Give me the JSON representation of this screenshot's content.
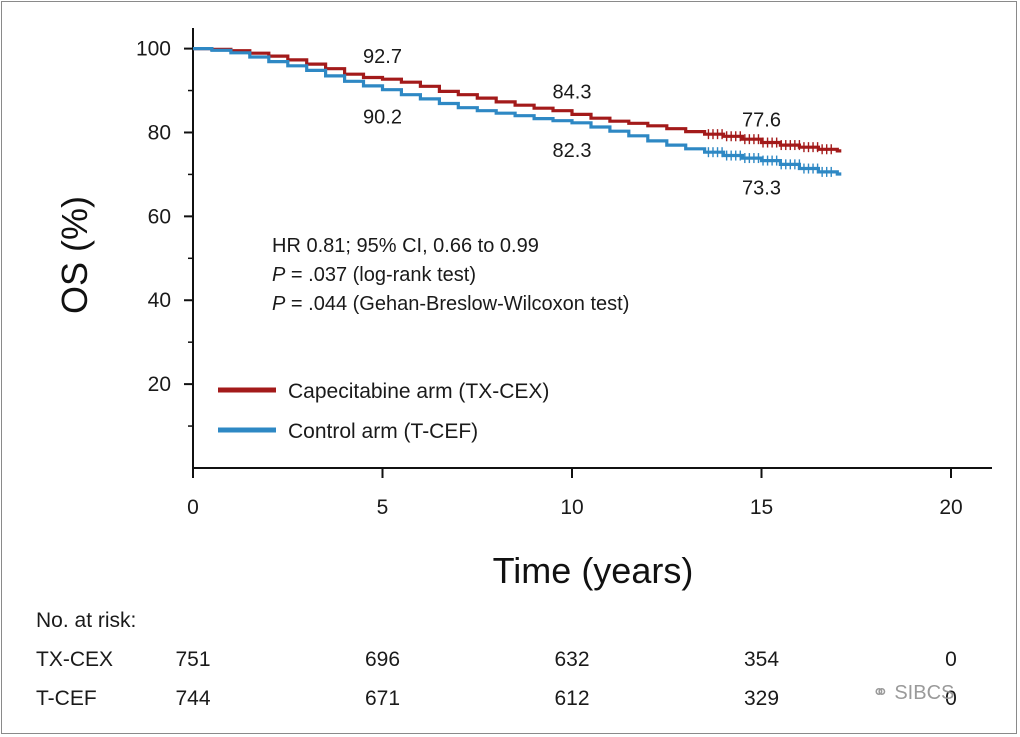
{
  "chart_data": {
    "type": "line",
    "title": "",
    "xlabel": "Time (years)",
    "ylabel": "OS (%)",
    "xlim": [
      0,
      21
    ],
    "ylim": [
      0,
      105
    ],
    "xticks": [
      0,
      5,
      10,
      15,
      20
    ],
    "yticks": [
      20,
      40,
      60,
      80,
      100
    ],
    "yminor": [
      10,
      30,
      50,
      70,
      90
    ],
    "series": [
      {
        "name": "Capecitabine arm (TX-CEX)",
        "color": "#a31a1a",
        "x": [
          0,
          0.5,
          1,
          1.5,
          2,
          2.5,
          3,
          3.5,
          4,
          4.5,
          5,
          5.5,
          6,
          6.5,
          7,
          7.5,
          8,
          8.5,
          9,
          9.5,
          10,
          10.5,
          11,
          11.5,
          12,
          12.5,
          13,
          13.5,
          14,
          14.5,
          15,
          15.5,
          16,
          16.5,
          17
        ],
        "values": [
          100,
          99.8,
          99.5,
          98.9,
          98.2,
          97.3,
          96.3,
          95.2,
          93.9,
          93.1,
          92.7,
          92.0,
          91.0,
          89.8,
          89.0,
          88.2,
          87.3,
          86.5,
          85.8,
          85.2,
          84.3,
          83.4,
          82.7,
          82.2,
          81.6,
          80.9,
          80.2,
          79.6,
          79.1,
          78.4,
          77.6,
          77.0,
          76.5,
          76.0,
          75.6
        ]
      },
      {
        "name": "Control arm (T-CEF)",
        "color": "#2e88c4",
        "x": [
          0,
          0.5,
          1,
          1.5,
          2,
          2.5,
          3,
          3.5,
          4,
          4.5,
          5,
          5.5,
          6,
          6.5,
          7,
          7.5,
          8,
          8.5,
          9,
          9.5,
          10,
          10.5,
          11,
          11.5,
          12,
          12.5,
          13,
          13.5,
          14,
          14.5,
          15,
          15.5,
          16,
          16.5,
          17
        ],
        "values": [
          100,
          99.6,
          99.0,
          98.0,
          96.9,
          95.9,
          94.8,
          93.5,
          92.2,
          91.1,
          90.2,
          89.0,
          88.0,
          86.9,
          85.9,
          85.2,
          84.6,
          84.0,
          83.3,
          82.8,
          82.3,
          81.3,
          80.3,
          79.2,
          78.0,
          77.0,
          76.1,
          75.3,
          74.5,
          73.9,
          73.3,
          72.4,
          71.4,
          70.6,
          70.1
        ]
      }
    ],
    "annotations": [
      {
        "series": 0,
        "x": 5,
        "y": 92.7,
        "text": "92.7"
      },
      {
        "series": 1,
        "x": 5,
        "y": 90.2,
        "text": "90.2"
      },
      {
        "series": 0,
        "x": 10,
        "y": 84.3,
        "text": "84.3"
      },
      {
        "series": 1,
        "x": 10,
        "y": 82.3,
        "text": "82.3"
      },
      {
        "series": 0,
        "x": 15,
        "y": 77.6,
        "text": "77.6"
      },
      {
        "series": 1,
        "x": 15,
        "y": 73.3,
        "text": "73.3"
      }
    ],
    "stats": {
      "hr": "HR 0.81; 95% CI, 0.66 to 0.99",
      "p_logrank_italic": "P",
      "p_logrank_rest": " = .037 (log-rank test)",
      "p_gehan_italic": "P",
      "p_gehan_rest": " = .044 (Gehan-Breslow-Wilcoxon test)"
    },
    "legend_position": "lower-left",
    "legend": [
      "Capecitabine arm (TX-CEX)",
      "Control arm (T-CEF)"
    ],
    "at_risk": {
      "title": "No. at risk:",
      "rows": [
        {
          "label": "TX-CEX",
          "values": [
            "751",
            "696",
            "632",
            "354",
            "0"
          ]
        },
        {
          "label": "T-CEF",
          "values": [
            "744",
            "671",
            "612",
            "329",
            "0"
          ]
        }
      ]
    }
  },
  "watermark": "SIBCS"
}
